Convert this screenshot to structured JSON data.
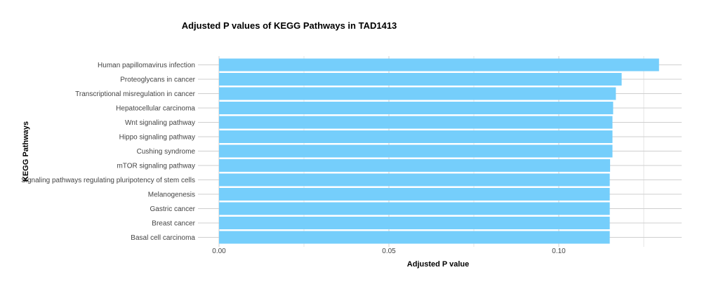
{
  "chart_data": {
    "type": "bar",
    "orientation": "horizontal",
    "title": "Adjusted P values of KEGG Pathways in TAD1413",
    "xlabel": "Adjusted P value",
    "ylabel": "KEGG Pathways",
    "xlim": [
      0,
      0.13
    ],
    "x_ticks": [
      0.0,
      0.05,
      0.1
    ],
    "x_tick_labels": [
      "0.00",
      "0.05",
      "0.10"
    ],
    "grid": true,
    "legend": "none",
    "bar_color": "#75CEFB",
    "categories": [
      "Human papillomavirus infection",
      "Proteoglycans in cancer",
      "Transcriptional misregulation in cancer",
      "Hepatocellular carcinoma",
      "Wnt signaling pathway",
      "Hippo signaling pathway",
      "Cushing syndrome",
      "mTOR signaling pathway",
      "Signaling pathways regulating pluripotency of stem cells",
      "Melanogenesis",
      "Gastric cancer",
      "Breast cancer",
      "Basal cell carcinoma"
    ],
    "values": [
      0.1295,
      0.1185,
      0.1168,
      0.116,
      0.1158,
      0.1158,
      0.1158,
      0.1151,
      0.115,
      0.115,
      0.115,
      0.115,
      0.115
    ]
  }
}
